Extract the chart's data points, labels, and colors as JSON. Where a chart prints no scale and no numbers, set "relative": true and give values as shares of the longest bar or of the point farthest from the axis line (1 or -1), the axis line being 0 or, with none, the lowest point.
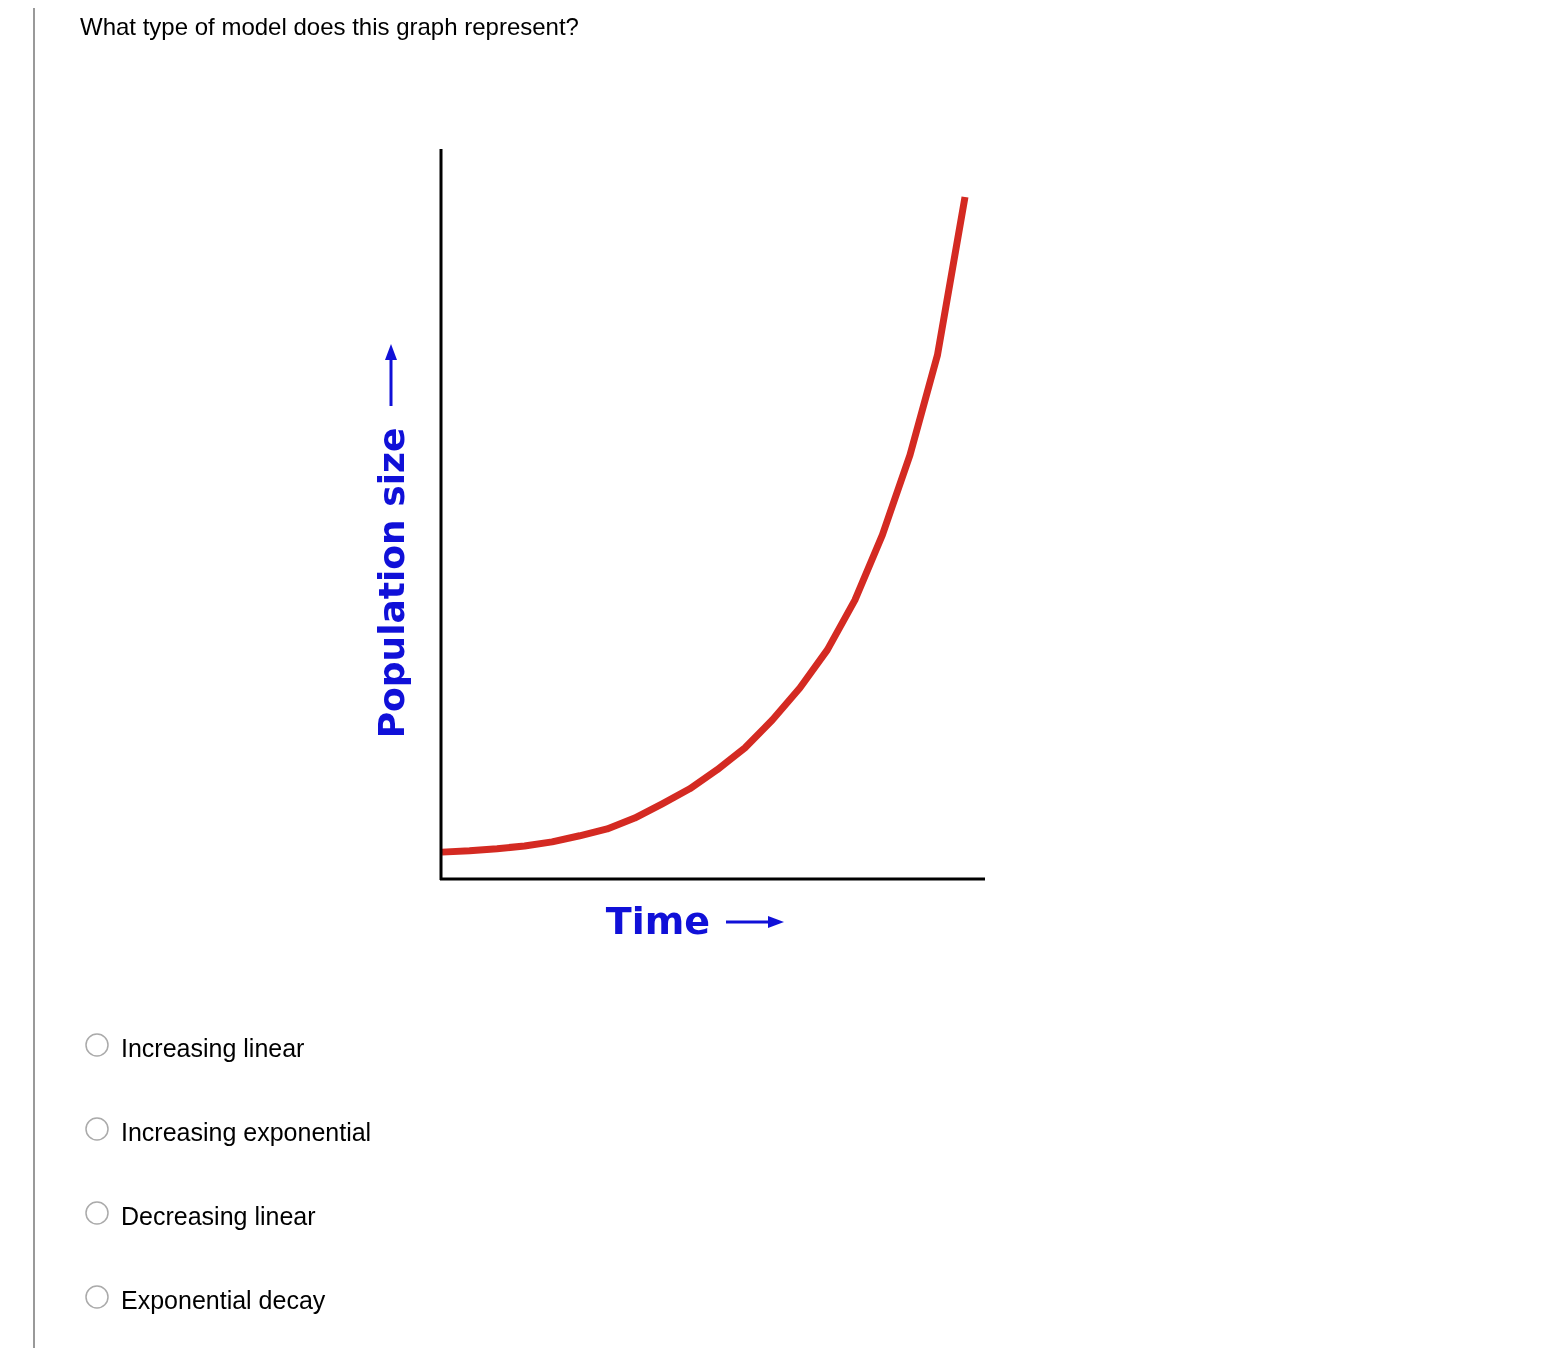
{
  "chart_data": {
    "type": "line",
    "relative": true,
    "title": "What type of model does this graph represent?",
    "xlabel": "Time",
    "ylabel": "Population size",
    "categories": [
      null,
      null,
      null,
      null,
      null,
      null,
      null,
      null,
      null,
      null,
      null,
      null,
      null,
      null,
      null,
      null,
      null,
      null,
      null,
      null
    ],
    "series": [
      {
        "color": "#d42a22",
        "values": [
          0.038,
          0.04,
          0.043,
          0.047,
          0.053,
          0.062,
          0.072,
          0.088,
          0.109,
          0.131,
          0.159,
          0.191,
          0.232,
          0.279,
          0.335,
          0.408,
          0.504,
          0.621,
          0.768,
          1.0
        ]
      }
    ],
    "annotations": [
      "Increasing linear",
      "Increasing exponential",
      "Decreasing linear",
      "Exponential decay"
    ],
    "marker": "none",
    "line_style": "solid"
  }
}
